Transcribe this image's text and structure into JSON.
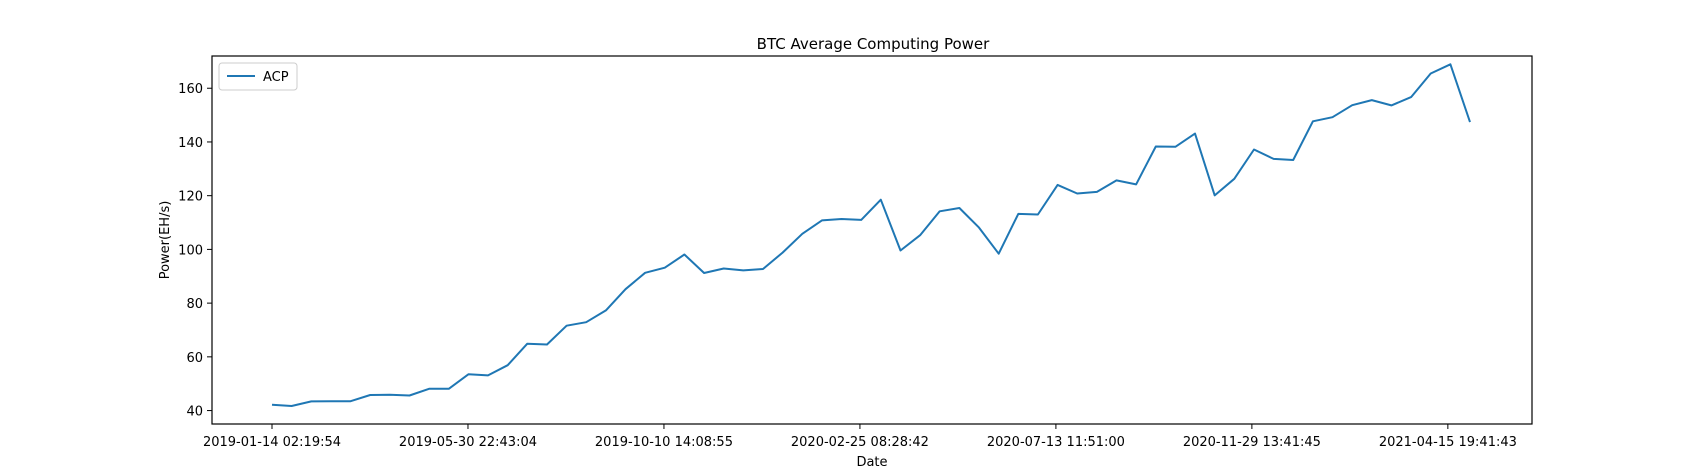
{
  "chart_data": {
    "type": "line",
    "title": "BTC Average Computing Power",
    "xlabel": "Date",
    "ylabel": "Power(EH/s)",
    "x_tick_labels": [
      "2019-01-14 02:19:54",
      "2019-05-30 22:43:04",
      "2019-10-10 14:08:55",
      "2020-02-25 08:28:42",
      "2020-07-13 11:51:00",
      "2020-11-29 13:41:45",
      "2021-04-15 19:41:43"
    ],
    "y_ticks": [
      40,
      60,
      80,
      100,
      120,
      140,
      160
    ],
    "ylim": [
      35,
      172
    ],
    "grid": false,
    "legend_position": "top-left",
    "series": [
      {
        "name": "ACP",
        "color": "#1f77b4",
        "values": [
          42.2,
          41.7,
          43.4,
          43.5,
          43.5,
          45.8,
          45.9,
          45.6,
          48.1,
          48.1,
          53.5,
          53.1,
          56.9,
          64.9,
          64.6,
          71.6,
          72.9,
          77.3,
          85.2,
          91.3,
          93.2,
          98.1,
          91.2,
          92.9,
          92.2,
          92.7,
          98.8,
          105.8,
          110.8,
          111.3,
          111.0,
          118.5,
          99.6,
          105.3,
          114.2,
          115.4,
          108.1,
          98.4,
          113.2,
          113.0,
          124.0,
          120.8,
          121.4,
          125.7,
          124.2,
          138.3,
          138.2,
          143.1,
          120.1,
          126.3,
          137.2,
          133.7,
          133.3,
          147.7,
          149.2,
          153.7,
          155.6,
          153.6,
          156.7,
          165.5,
          168.9,
          147.4
        ]
      }
    ]
  }
}
